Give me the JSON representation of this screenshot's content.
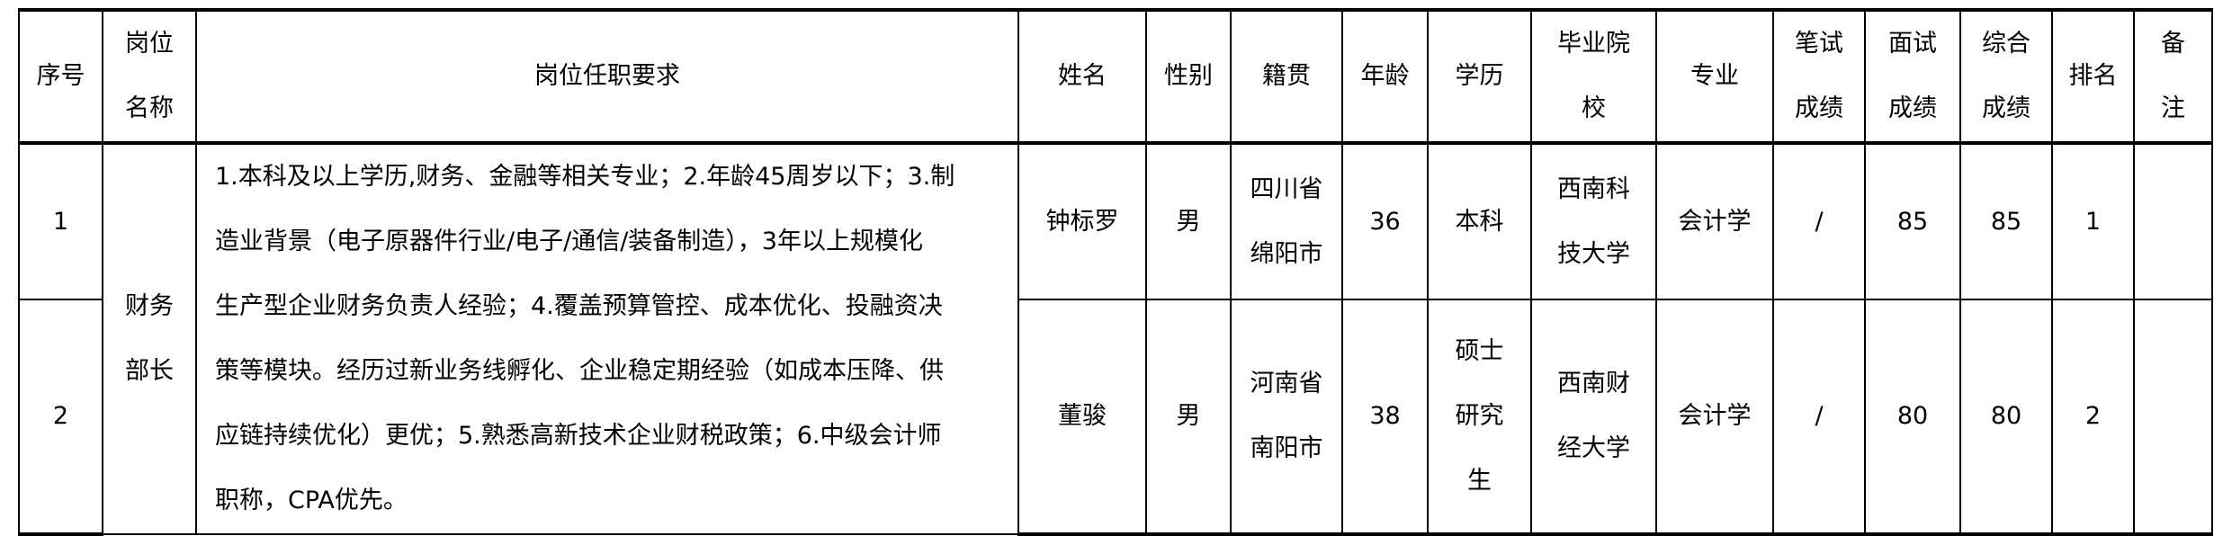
{
  "headers": {
    "seq": "序号",
    "position": [
      "岗位",
      "名称"
    ],
    "requirements": "岗位任职要求",
    "name": "姓名",
    "gender": "性别",
    "origin": "籍贯",
    "age": "年龄",
    "education": "学历",
    "school": [
      "毕业院",
      "校"
    ],
    "major": "专业",
    "written": [
      "笔试",
      "成绩"
    ],
    "interview": [
      "面试",
      "成绩"
    ],
    "total": [
      "综合",
      "成绩"
    ],
    "rank": "排名",
    "remark": [
      "备",
      "注"
    ]
  },
  "position": [
    "财务",
    "部长"
  ],
  "requirements": [
    "1.本科及以上学历,财务、金融等相关专业；2.年龄45周岁以下；3.制",
    "造业背景（电子原器件行业/电子/通信/装备制造），3年以上规模化",
    "生产型企业财务负责人经验；4.覆盖预算管控、成本优化、投融资决",
    "策等模块。经历过新业务线孵化、企业稳定期经验（如成本压降、供",
    "应链持续优化）更优；5.熟悉高新技术企业财税政策；6.中级会计师",
    "职称，CPA优先。"
  ],
  "rows": [
    {
      "seq": "1",
      "name": "钟标罗",
      "gender": "男",
      "origin": [
        "四川省",
        "绵阳市"
      ],
      "age": "36",
      "education": [
        "本科"
      ],
      "school": [
        "西南科",
        "技大学"
      ],
      "major": "会计学",
      "written": "/",
      "interview": "85",
      "total": "85",
      "rank": "1",
      "remark": ""
    },
    {
      "seq": "2",
      "name": "董骏",
      "gender": "男",
      "origin": [
        "河南省",
        "南阳市"
      ],
      "age": "38",
      "education": [
        "硕士",
        "研究",
        "生"
      ],
      "school": [
        "西南财",
        "经大学"
      ],
      "major": "会计学",
      "written": "/",
      "interview": "80",
      "total": "80",
      "rank": "2",
      "remark": ""
    }
  ]
}
